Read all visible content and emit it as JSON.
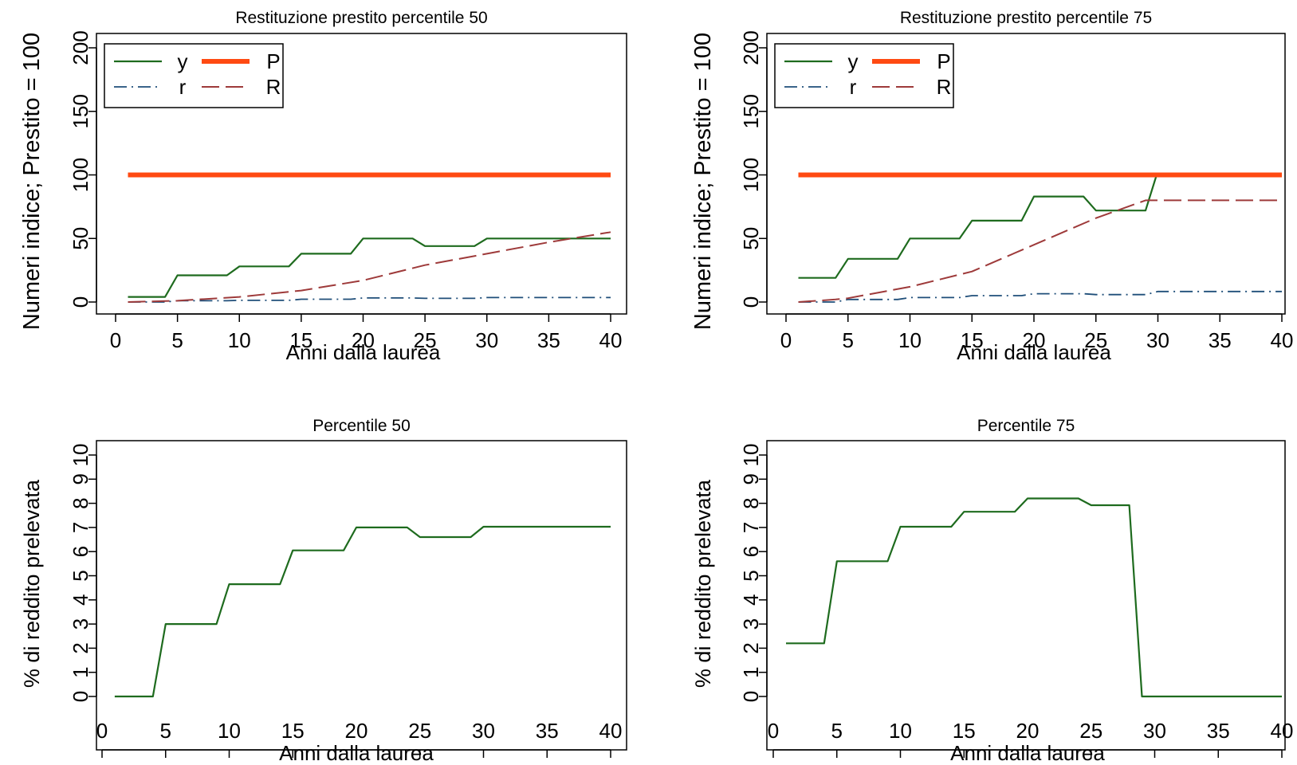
{
  "colors": {
    "y": "#1e6b1e",
    "P": "#ff4a12",
    "r": "#1f4e79",
    "R": "#9e3a3a",
    "axis": "#000000",
    "background": "#ffffff"
  },
  "chart_data": [
    {
      "type": "line",
      "title": "Restituzione prestito percentile 50",
      "xlabel": "Anni dalla laurea",
      "ylabel": "Numeri indice; Prestito = 100",
      "xlim": [
        0,
        40
      ],
      "ylim": [
        0,
        200
      ],
      "xticks": [
        "0",
        "5",
        "10",
        "15",
        "20",
        "25",
        "30",
        "35",
        "40"
      ],
      "yticks": [
        "0",
        "50",
        "100",
        "150",
        "200"
      ],
      "grid": false,
      "legend_position": "top-left",
      "legend": [
        {
          "key": "y",
          "label": "y"
        },
        {
          "key": "P",
          "label": "P"
        },
        {
          "key": "r",
          "label": "r"
        },
        {
          "key": "R",
          "label": "R"
        }
      ],
      "series": [
        {
          "name": "y",
          "style": "solid",
          "x": [
            1,
            4,
            5,
            9,
            10,
            14,
            15,
            19,
            20,
            24,
            25,
            29,
            30,
            40
          ],
          "y": [
            4,
            4,
            21,
            21,
            28,
            28,
            38,
            38,
            50,
            50,
            44,
            44,
            50,
            50
          ]
        },
        {
          "name": "P",
          "style": "thick",
          "x": [
            1,
            40
          ],
          "y": [
            100,
            100
          ]
        },
        {
          "name": "r",
          "style": "dashdot",
          "x": [
            1,
            4,
            5,
            9,
            10,
            14,
            15,
            19,
            20,
            24,
            25,
            29,
            30,
            40
          ],
          "y": [
            0,
            0,
            1,
            1,
            1.3,
            1.3,
            2.2,
            2.2,
            3.2,
            3.2,
            2.9,
            2.9,
            3.5,
            3.5
          ]
        },
        {
          "name": "R",
          "style": "dashed",
          "x": [
            1,
            5,
            10,
            15,
            20,
            25,
            30,
            35,
            40
          ],
          "y": [
            0,
            1,
            4,
            9,
            17,
            29,
            38,
            47,
            55
          ]
        }
      ]
    },
    {
      "type": "line",
      "title": "Restituzione prestito percentile 75",
      "xlabel": "Anni dalla laurea",
      "ylabel": "Numeri indice; Prestito = 100",
      "xlim": [
        0,
        40
      ],
      "ylim": [
        0,
        200
      ],
      "xticks": [
        "0",
        "5",
        "10",
        "15",
        "20",
        "25",
        "30",
        "35",
        "40"
      ],
      "yticks": [
        "0",
        "50",
        "100",
        "150",
        "200"
      ],
      "grid": false,
      "legend_position": "top-left",
      "legend": [
        {
          "key": "y",
          "label": "y"
        },
        {
          "key": "P",
          "label": "P"
        },
        {
          "key": "r",
          "label": "r"
        },
        {
          "key": "R",
          "label": "R"
        }
      ],
      "series": [
        {
          "name": "y",
          "style": "solid",
          "x": [
            1,
            4,
            5,
            9,
            10,
            14,
            15,
            19,
            20,
            24,
            25,
            29,
            29.9
          ],
          "y": [
            19,
            19,
            34,
            34,
            50,
            50,
            64,
            64,
            83,
            83,
            72,
            72,
            100
          ]
        },
        {
          "name": "P",
          "style": "thick",
          "x": [
            1,
            40
          ],
          "y": [
            100,
            100
          ]
        },
        {
          "name": "r",
          "style": "dashdot",
          "x": [
            1,
            4,
            5,
            9,
            10,
            14,
            15,
            19,
            20,
            24,
            25,
            29,
            30,
            40
          ],
          "y": [
            0,
            0,
            2,
            2,
            3.5,
            3.5,
            5,
            5,
            6.5,
            6.5,
            5.8,
            5.8,
            8.3,
            8.3
          ]
        },
        {
          "name": "R",
          "style": "dashed",
          "x": [
            1,
            4,
            5,
            10,
            15,
            20,
            25,
            29,
            30,
            40
          ],
          "y": [
            0,
            2,
            3,
            12,
            24,
            45,
            66,
            80,
            80,
            80
          ]
        }
      ]
    },
    {
      "type": "line",
      "title": "Percentile 50",
      "xlabel": "Anni dalla laurea",
      "ylabel": "% di reddito prelevata",
      "xlim": [
        0,
        40
      ],
      "ylim": [
        0,
        10
      ],
      "xticks": [
        "0",
        "5",
        "10",
        "15",
        "20",
        "25",
        "30",
        "35",
        "40"
      ],
      "yticks": [
        "0",
        "1",
        "2",
        "3",
        "4",
        "5",
        "6",
        "7",
        "8",
        "9",
        "10"
      ],
      "grid": false,
      "series": [
        {
          "style": "solid",
          "x": [
            1,
            4,
            5,
            9,
            10,
            14,
            15,
            19,
            20,
            24,
            25,
            29,
            30,
            40
          ],
          "y": [
            0,
            0,
            3,
            3,
            4.65,
            4.65,
            6.05,
            6.05,
            7,
            7,
            6.6,
            6.6,
            7.03,
            7.03
          ]
        }
      ]
    },
    {
      "type": "line",
      "title": "Percentile 75",
      "xlabel": "Anni dalla laurea",
      "ylabel": "% di reddito prelevata",
      "xlim": [
        0,
        40
      ],
      "ylim": [
        0,
        10
      ],
      "xticks": [
        "0",
        "5",
        "10",
        "15",
        "20",
        "25",
        "30",
        "35",
        "40"
      ],
      "yticks": [
        "0",
        "1",
        "2",
        "3",
        "4",
        "5",
        "6",
        "7",
        "8",
        "9",
        "10"
      ],
      "grid": false,
      "series": [
        {
          "style": "solid",
          "x": [
            1,
            4,
            5,
            9,
            10,
            14,
            15,
            19,
            20,
            24,
            25,
            28,
            29,
            40
          ],
          "y": [
            2.2,
            2.2,
            5.6,
            5.6,
            7.03,
            7.03,
            7.65,
            7.65,
            8.2,
            8.2,
            7.92,
            7.92,
            0,
            0
          ]
        }
      ]
    }
  ]
}
